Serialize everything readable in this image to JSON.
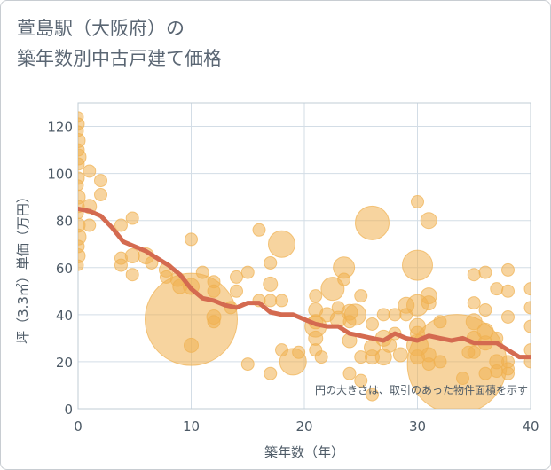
{
  "title_line1": "萱島駅（大阪府）の",
  "title_line2": "築年数別中古戸建て価格",
  "chart_data": {
    "type": "scatter",
    "xlabel": "築年数（年）",
    "ylabel": "坪（3.3㎡）単価（万円）",
    "xlim": [
      0,
      40
    ],
    "ylim": [
      0,
      130
    ],
    "xticks": [
      0,
      10,
      20,
      30,
      40
    ],
    "yticks": [
      0,
      20,
      40,
      60,
      80,
      100,
      120
    ],
    "grid": true,
    "annotation": "円の大きさは、取引のあった物件面積を示す",
    "colors": {
      "bubble": "#f0b050",
      "trend": "#d46a50",
      "grid": "#d3dde6"
    },
    "trend": {
      "x": [
        0,
        1,
        2,
        3,
        4,
        5,
        6,
        7,
        8,
        9,
        10,
        11,
        12,
        13,
        14,
        15,
        16,
        17,
        18,
        19,
        20,
        21,
        22,
        23,
        24,
        25,
        26,
        27,
        28,
        29,
        30,
        31,
        32,
        33,
        34,
        35,
        36,
        37,
        38,
        39,
        40
      ],
      "y": [
        85,
        84,
        82,
        77,
        71,
        69,
        67,
        64,
        61,
        57,
        51,
        47,
        46,
        44,
        43,
        45,
        45,
        41,
        40,
        40,
        38,
        36,
        35,
        35,
        32,
        31,
        30,
        29,
        32,
        30,
        29,
        31,
        30,
        29,
        30,
        28,
        28,
        28,
        25,
        22,
        22
      ]
    },
    "points": [
      {
        "x": 0,
        "y": 124,
        "s": 6
      },
      {
        "x": 0,
        "y": 121,
        "s": 7
      },
      {
        "x": 0,
        "y": 118,
        "s": 6
      },
      {
        "x": 0,
        "y": 114,
        "s": 8
      },
      {
        "x": 0,
        "y": 110,
        "s": 7
      },
      {
        "x": 0,
        "y": 107,
        "s": 9
      },
      {
        "x": 0,
        "y": 104,
        "s": 7
      },
      {
        "x": 0,
        "y": 98,
        "s": 7
      },
      {
        "x": 0,
        "y": 95,
        "s": 6
      },
      {
        "x": 0,
        "y": 90,
        "s": 8
      },
      {
        "x": 0,
        "y": 86,
        "s": 7
      },
      {
        "x": 0,
        "y": 83,
        "s": 6
      },
      {
        "x": 0,
        "y": 78,
        "s": 8
      },
      {
        "x": 0,
        "y": 73,
        "s": 9
      },
      {
        "x": 0,
        "y": 69,
        "s": 7
      },
      {
        "x": 0,
        "y": 65,
        "s": 8
      },
      {
        "x": 0,
        "y": 61,
        "s": 6
      },
      {
        "x": 1,
        "y": 101,
        "s": 7
      },
      {
        "x": 1,
        "y": 86,
        "s": 8
      },
      {
        "x": 1,
        "y": 78,
        "s": 7
      },
      {
        "x": 2,
        "y": 97,
        "s": 7
      },
      {
        "x": 2,
        "y": 91,
        "s": 7
      },
      {
        "x": 3.8,
        "y": 78,
        "s": 7
      },
      {
        "x": 3.8,
        "y": 64,
        "s": 7
      },
      {
        "x": 3.8,
        "y": 61,
        "s": 7
      },
      {
        "x": 4.8,
        "y": 81,
        "s": 7
      },
      {
        "x": 4.8,
        "y": 65,
        "s": 8
      },
      {
        "x": 4.8,
        "y": 57,
        "s": 7
      },
      {
        "x": 6,
        "y": 65,
        "s": 9
      },
      {
        "x": 6.5,
        "y": 62,
        "s": 7
      },
      {
        "x": 7.8,
        "y": 59,
        "s": 8
      },
      {
        "x": 7.8,
        "y": 56,
        "s": 7
      },
      {
        "x": 8.8,
        "y": 55,
        "s": 8
      },
      {
        "x": 9,
        "y": 52,
        "s": 8
      },
      {
        "x": 10,
        "y": 72,
        "s": 7
      },
      {
        "x": 10,
        "y": 52,
        "s": 9
      },
      {
        "x": 10,
        "y": 38,
        "s": 52
      },
      {
        "x": 10,
        "y": 27,
        "s": 8
      },
      {
        "x": 11,
        "y": 58,
        "s": 7
      },
      {
        "x": 12,
        "y": 54,
        "s": 7
      },
      {
        "x": 12,
        "y": 50,
        "s": 7
      },
      {
        "x": 12,
        "y": 39,
        "s": 8
      },
      {
        "x": 12,
        "y": 37,
        "s": 7
      },
      {
        "x": 13.5,
        "y": 43,
        "s": 7
      },
      {
        "x": 14,
        "y": 56,
        "s": 7
      },
      {
        "x": 14,
        "y": 50,
        "s": 7
      },
      {
        "x": 15,
        "y": 58,
        "s": 7
      },
      {
        "x": 15,
        "y": 19,
        "s": 7
      },
      {
        "x": 16,
        "y": 76,
        "s": 7
      },
      {
        "x": 16,
        "y": 46,
        "s": 7
      },
      {
        "x": 17,
        "y": 62,
        "s": 7
      },
      {
        "x": 17,
        "y": 53,
        "s": 8
      },
      {
        "x": 17,
        "y": 46,
        "s": 7
      },
      {
        "x": 17,
        "y": 15,
        "s": 7
      },
      {
        "x": 18,
        "y": 70,
        "s": 15
      },
      {
        "x": 18,
        "y": 46,
        "s": 7
      },
      {
        "x": 18,
        "y": 25,
        "s": 7
      },
      {
        "x": 19,
        "y": 20,
        "s": 15
      },
      {
        "x": 19.5,
        "y": 24,
        "s": 7
      },
      {
        "x": 21,
        "y": 48,
        "s": 7
      },
      {
        "x": 21,
        "y": 42,
        "s": 8
      },
      {
        "x": 21,
        "y": 37,
        "s": 8
      },
      {
        "x": 21,
        "y": 35,
        "s": 12
      },
      {
        "x": 21,
        "y": 30,
        "s": 8
      },
      {
        "x": 21,
        "y": 25,
        "s": 7
      },
      {
        "x": 21.5,
        "y": 22,
        "s": 7
      },
      {
        "x": 22,
        "y": 40,
        "s": 8
      },
      {
        "x": 22.5,
        "y": 51,
        "s": 13
      },
      {
        "x": 23,
        "y": 43,
        "s": 7
      },
      {
        "x": 23,
        "y": 38,
        "s": 9
      },
      {
        "x": 23.5,
        "y": 60,
        "s": 12
      },
      {
        "x": 23.5,
        "y": 55,
        "s": 7
      },
      {
        "x": 24,
        "y": 41,
        "s": 9
      },
      {
        "x": 24,
        "y": 37,
        "s": 7
      },
      {
        "x": 24,
        "y": 29,
        "s": 8
      },
      {
        "x": 24,
        "y": 15,
        "s": 7
      },
      {
        "x": 24.5,
        "y": 40,
        "s": 12
      },
      {
        "x": 25,
        "y": 48,
        "s": 7
      },
      {
        "x": 25,
        "y": 22,
        "s": 7
      },
      {
        "x": 25,
        "y": 12,
        "s": 7
      },
      {
        "x": 26,
        "y": 79,
        "s": 19
      },
      {
        "x": 26,
        "y": 36,
        "s": 7
      },
      {
        "x": 26,
        "y": 26,
        "s": 9
      },
      {
        "x": 26,
        "y": 22,
        "s": 8
      },
      {
        "x": 26,
        "y": 6,
        "s": 7
      },
      {
        "x": 27,
        "y": 40,
        "s": 7
      },
      {
        "x": 27,
        "y": 30,
        "s": 9
      },
      {
        "x": 27,
        "y": 22,
        "s": 9
      },
      {
        "x": 27.5,
        "y": 27,
        "s": 8
      },
      {
        "x": 28,
        "y": 40,
        "s": 7
      },
      {
        "x": 28,
        "y": 32,
        "s": 7
      },
      {
        "x": 28.5,
        "y": 23,
        "s": 8
      },
      {
        "x": 29,
        "y": 44,
        "s": 9
      },
      {
        "x": 29,
        "y": 40,
        "s": 7
      },
      {
        "x": 30,
        "y": 88,
        "s": 7
      },
      {
        "x": 30,
        "y": 61,
        "s": 17
      },
      {
        "x": 30,
        "y": 44,
        "s": 12
      },
      {
        "x": 30,
        "y": 35,
        "s": 9
      },
      {
        "x": 30,
        "y": 32,
        "s": 8
      },
      {
        "x": 30,
        "y": 27,
        "s": 12
      },
      {
        "x": 30,
        "y": 22,
        "s": 8
      },
      {
        "x": 31,
        "y": 80,
        "s": 9
      },
      {
        "x": 31,
        "y": 48,
        "s": 9
      },
      {
        "x": 31,
        "y": 45,
        "s": 8
      },
      {
        "x": 31,
        "y": 23,
        "s": 8
      },
      {
        "x": 31,
        "y": 19,
        "s": 7
      },
      {
        "x": 32,
        "y": 37,
        "s": 7
      },
      {
        "x": 32,
        "y": 20,
        "s": 7
      },
      {
        "x": 33.5,
        "y": 19,
        "s": 56
      },
      {
        "x": 34,
        "y": 13,
        "s": 7
      },
      {
        "x": 34.5,
        "y": 24,
        "s": 7
      },
      {
        "x": 35,
        "y": 57,
        "s": 7
      },
      {
        "x": 35,
        "y": 45,
        "s": 7
      },
      {
        "x": 35,
        "y": 37,
        "s": 9
      },
      {
        "x": 35,
        "y": 30,
        "s": 8
      },
      {
        "x": 35,
        "y": 24,
        "s": 7
      },
      {
        "x": 36,
        "y": 58,
        "s": 7
      },
      {
        "x": 36,
        "y": 42,
        "s": 7
      },
      {
        "x": 36,
        "y": 33,
        "s": 9
      },
      {
        "x": 36,
        "y": 28,
        "s": 8
      },
      {
        "x": 36,
        "y": 15,
        "s": 7
      },
      {
        "x": 37,
        "y": 51,
        "s": 7
      },
      {
        "x": 37,
        "y": 30,
        "s": 7
      },
      {
        "x": 37,
        "y": 20,
        "s": 8
      },
      {
        "x": 37,
        "y": 16,
        "s": 7
      },
      {
        "x": 38,
        "y": 59,
        "s": 7
      },
      {
        "x": 38,
        "y": 50,
        "s": 7
      },
      {
        "x": 38,
        "y": 39,
        "s": 7
      },
      {
        "x": 38,
        "y": 20,
        "s": 7
      },
      {
        "x": 38,
        "y": 17,
        "s": 7
      },
      {
        "x": 38,
        "y": 15,
        "s": 7
      },
      {
        "x": 40,
        "y": 51,
        "s": 7
      },
      {
        "x": 40,
        "y": 43,
        "s": 7
      },
      {
        "x": 40,
        "y": 35,
        "s": 7
      },
      {
        "x": 40,
        "y": 25,
        "s": 7
      },
      {
        "x": 40,
        "y": 20,
        "s": 7
      }
    ]
  }
}
